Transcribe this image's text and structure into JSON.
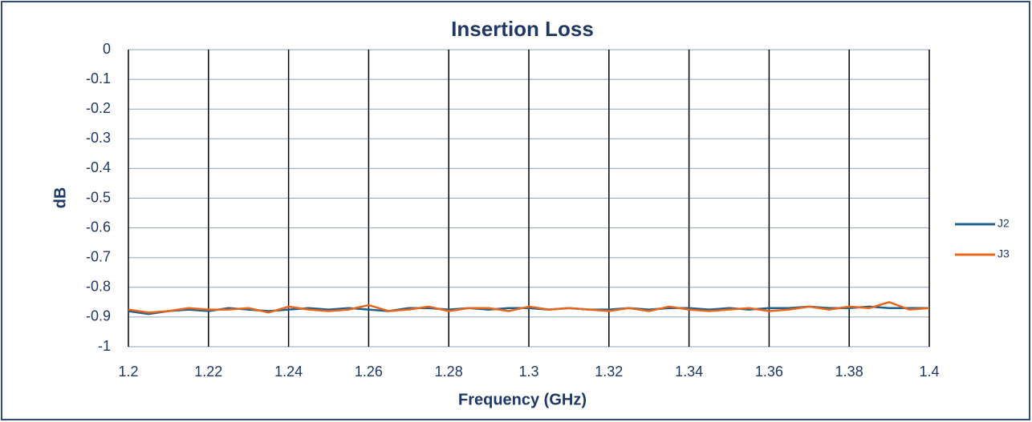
{
  "chart_data": {
    "type": "line",
    "title": "Insertion Loss",
    "xlabel": "Frequency (GHz)",
    "ylabel": "dB",
    "x": [
      1.2,
      1.205,
      1.21,
      1.215,
      1.22,
      1.225,
      1.23,
      1.235,
      1.24,
      1.245,
      1.25,
      1.255,
      1.26,
      1.265,
      1.27,
      1.275,
      1.28,
      1.285,
      1.29,
      1.295,
      1.3,
      1.305,
      1.31,
      1.315,
      1.32,
      1.325,
      1.33,
      1.335,
      1.34,
      1.345,
      1.35,
      1.355,
      1.36,
      1.365,
      1.37,
      1.375,
      1.38,
      1.385,
      1.39,
      1.395,
      1.4
    ],
    "series": [
      {
        "name": "J2",
        "color": "#1f5f8b",
        "values": [
          -0.88,
          -0.89,
          -0.88,
          -0.875,
          -0.88,
          -0.87,
          -0.875,
          -0.88,
          -0.875,
          -0.87,
          -0.875,
          -0.87,
          -0.875,
          -0.88,
          -0.87,
          -0.87,
          -0.875,
          -0.87,
          -0.875,
          -0.87,
          -0.87,
          -0.875,
          -0.87,
          -0.875,
          -0.875,
          -0.87,
          -0.875,
          -0.87,
          -0.87,
          -0.875,
          -0.87,
          -0.875,
          -0.87,
          -0.87,
          -0.865,
          -0.87,
          -0.87,
          -0.865,
          -0.87,
          -0.87,
          -0.87
        ]
      },
      {
        "name": "J3",
        "color": "#e8661c",
        "values": [
          -0.875,
          -0.885,
          -0.88,
          -0.87,
          -0.875,
          -0.875,
          -0.87,
          -0.885,
          -0.865,
          -0.875,
          -0.88,
          -0.875,
          -0.86,
          -0.88,
          -0.875,
          -0.865,
          -0.88,
          -0.87,
          -0.87,
          -0.88,
          -0.865,
          -0.875,
          -0.87,
          -0.875,
          -0.88,
          -0.87,
          -0.88,
          -0.865,
          -0.875,
          -0.88,
          -0.875,
          -0.87,
          -0.88,
          -0.875,
          -0.865,
          -0.875,
          -0.865,
          -0.87,
          -0.85,
          -0.875,
          -0.87
        ]
      }
    ],
    "xlim": [
      1.2,
      1.4
    ],
    "xticks": [
      1.2,
      1.22,
      1.24,
      1.26,
      1.28,
      1.3,
      1.32,
      1.34,
      1.36,
      1.38,
      1.4
    ],
    "ylim": [
      -1,
      0
    ],
    "yticks": [
      0,
      -0.1,
      -0.2,
      -0.3,
      -0.4,
      -0.5,
      -0.6,
      -0.7,
      -0.8,
      -0.9,
      -1
    ],
    "grid": true,
    "legend": "right"
  }
}
